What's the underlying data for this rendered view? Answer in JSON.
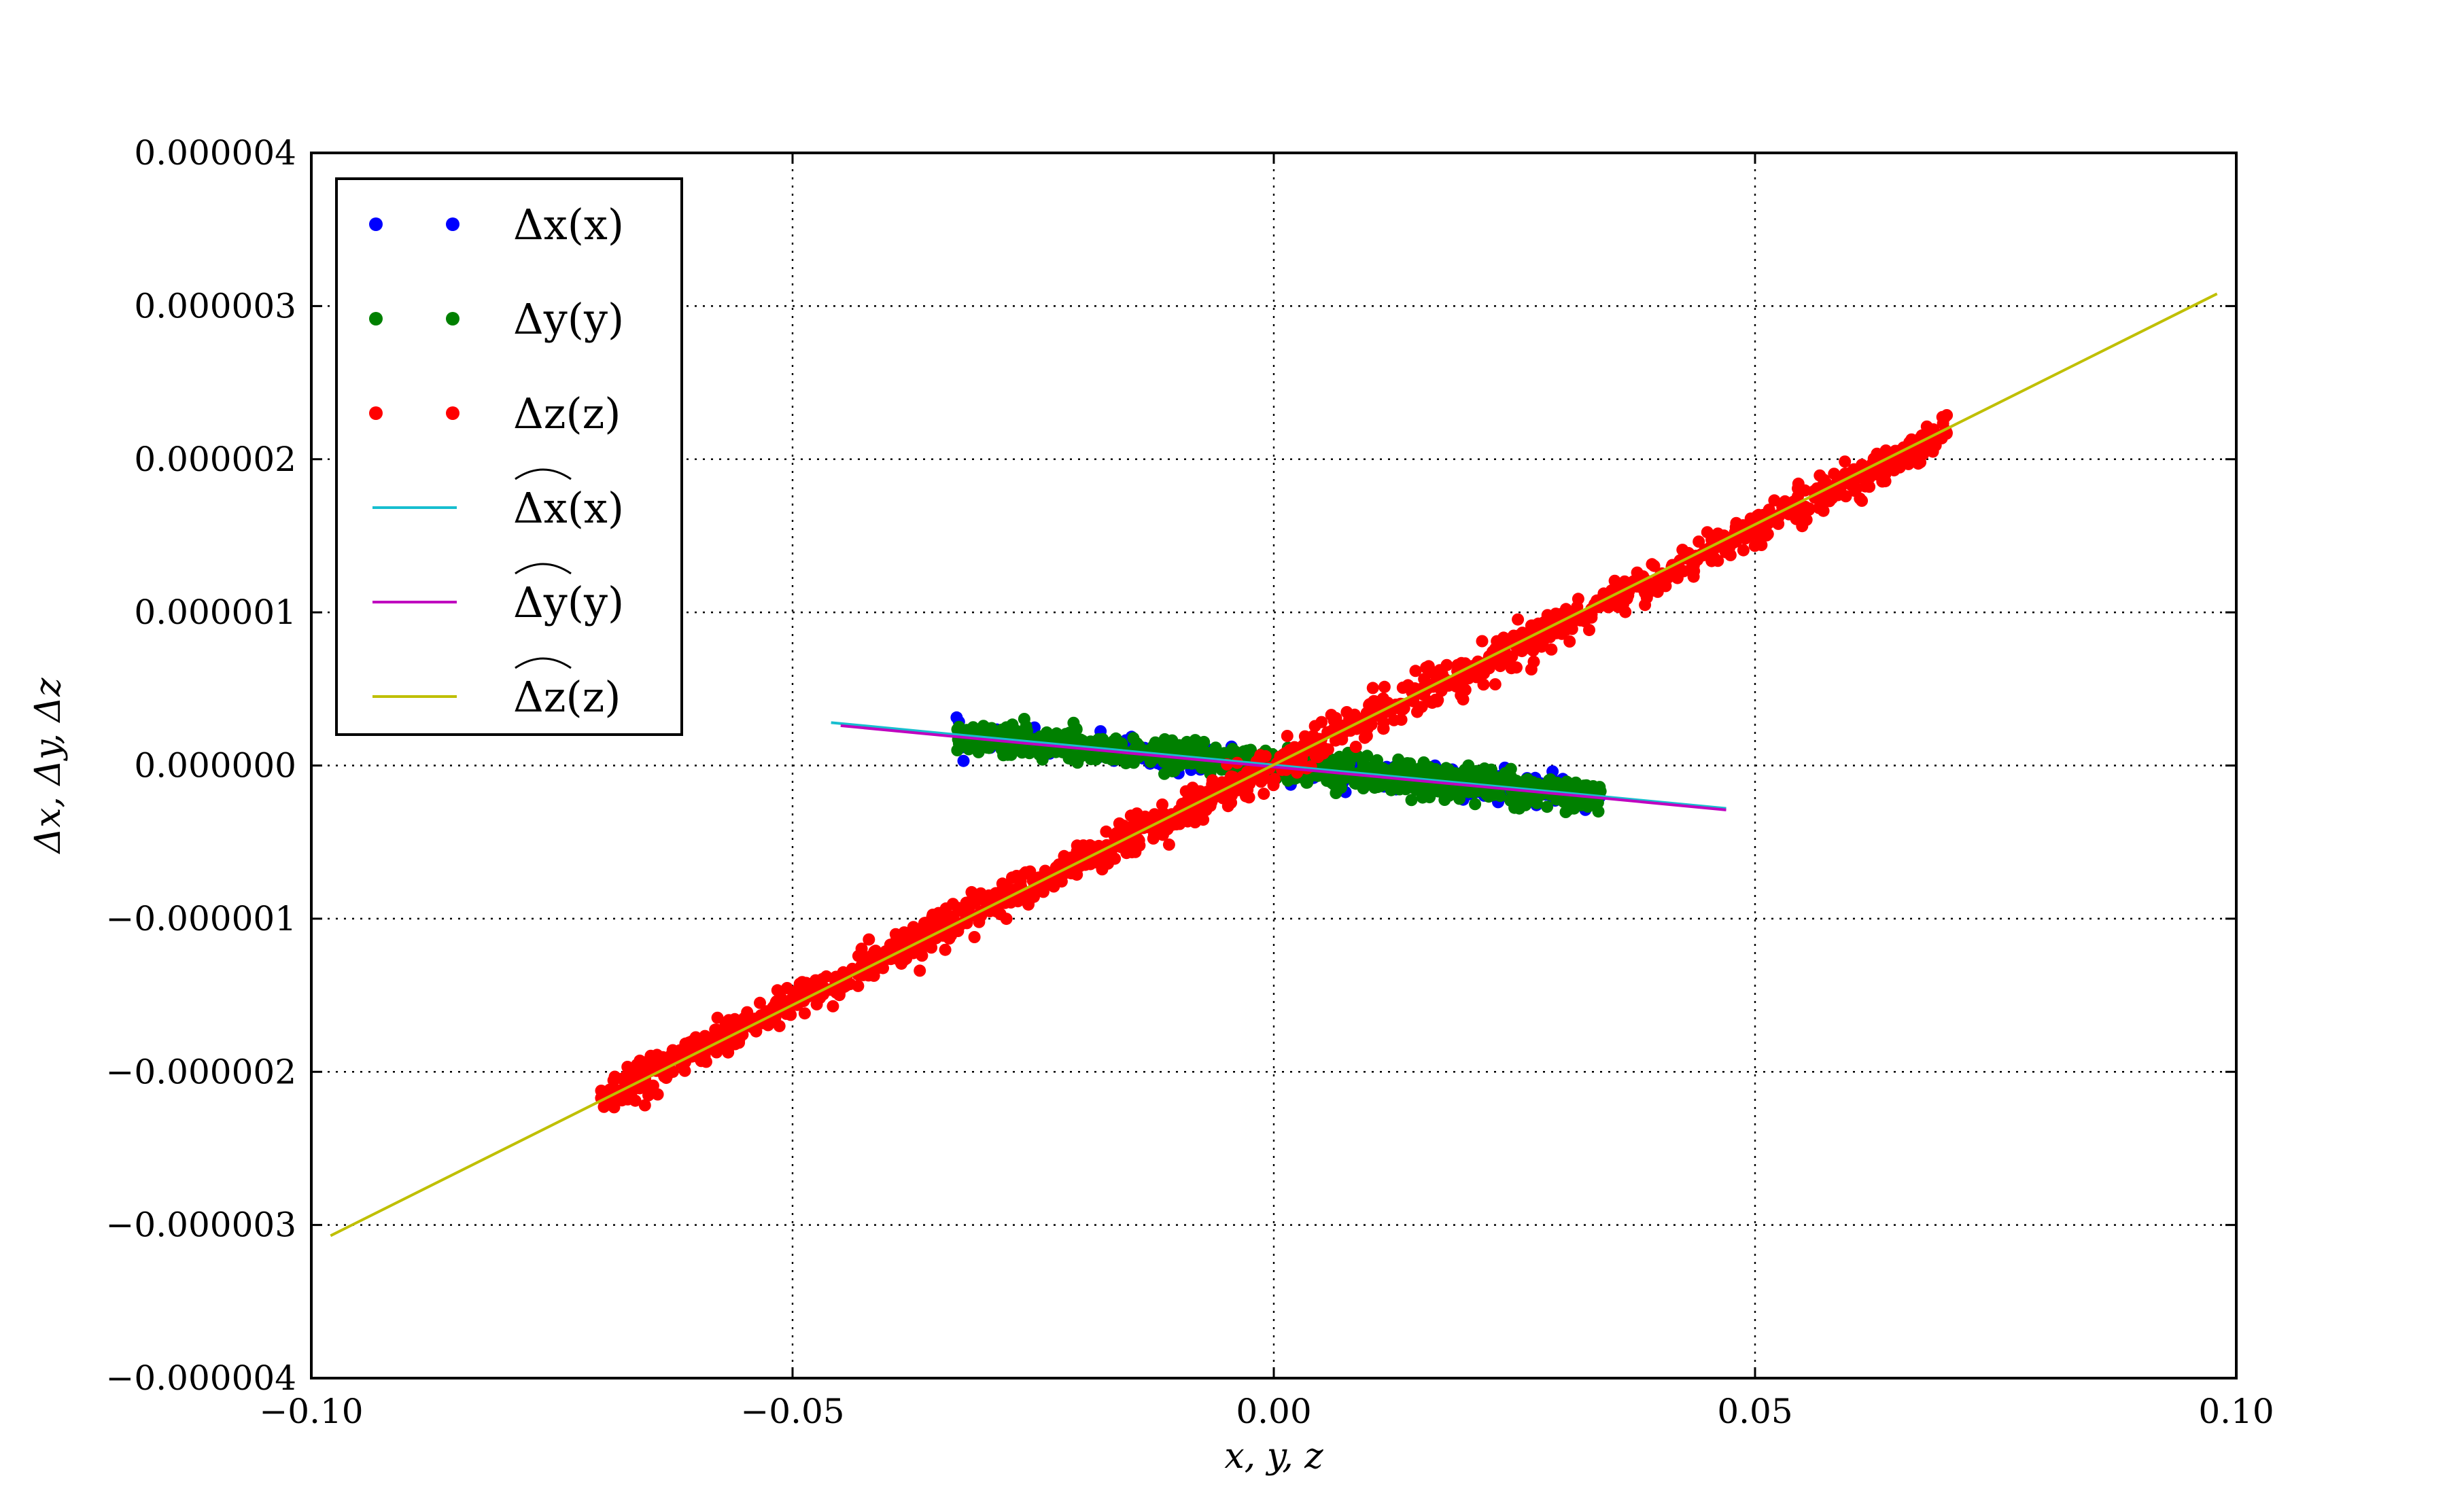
{
  "chart_data": {
    "type": "scatter",
    "title": "",
    "xlabel": "x, y, z",
    "ylabel": "Δx, Δy, Δz",
    "xlim": [
      -0.1,
      0.1
    ],
    "ylim": [
      -4e-06,
      4e-06
    ],
    "x_ticks": [
      -0.1,
      -0.05,
      0.0,
      0.05,
      0.1
    ],
    "x_tick_labels": [
      "−0.10",
      "−0.05",
      "0.00",
      "0.05",
      "0.10"
    ],
    "y_ticks": [
      4e-06,
      3e-06,
      2e-06,
      1e-06,
      0.0,
      -1e-06,
      -2e-06,
      -3e-06,
      -4e-06
    ],
    "y_tick_labels": [
      "0.000004",
      "0.000003",
      "0.000002",
      "0.000001",
      "0.000000",
      "−0.000001",
      "−0.000002",
      "−0.000003",
      "−0.000004"
    ],
    "grid": true,
    "legend_position": "top-left",
    "scatter_series": [
      {
        "name": "Δx(x)",
        "color": "#0000ff",
        "x_range": [
          -0.033,
          0.034
        ],
        "slope": -5.8e-06,
        "intercept": 0.0,
        "spread": 4.5e-08,
        "count": 380
      },
      {
        "name": "Δy(y)",
        "color": "#008000",
        "x_range": [
          -0.033,
          0.034
        ],
        "slope": -5.8e-06,
        "intercept": 0.0,
        "spread": 5e-08,
        "count": 900
      },
      {
        "name": "Δz(z)",
        "color": "#ff0000",
        "x_range": [
          -0.07,
          0.07
        ],
        "slope": 3.09e-05,
        "intercept": 0.0,
        "spread": 6e-08,
        "count": 1400
      }
    ],
    "fit_series": [
      {
        "name": "Δx(x)",
        "color": "#17becf",
        "x": [
          -0.046,
          0.047
        ],
        "y": [
          2.8e-07,
          -2.8e-07
        ]
      },
      {
        "name": "Δy(y)",
        "color": "#bf00bf",
        "x": [
          -0.045,
          0.047
        ],
        "y": [
          2.6e-07,
          -2.9e-07
        ]
      },
      {
        "name": "Δz(z)",
        "color": "#bfbf00",
        "x": [
          -0.098,
          0.098
        ],
        "y": [
          -3.07e-06,
          3.08e-06
        ]
      }
    ]
  }
}
